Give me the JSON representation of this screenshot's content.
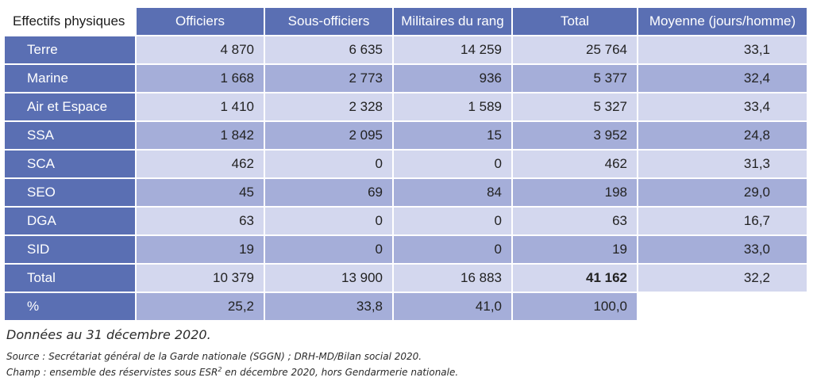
{
  "table": {
    "headers": [
      "Effectifs physiques",
      "Officiers",
      "Sous-officiers",
      "Militaires du rang",
      "Total",
      "Moyenne (jours/homme)"
    ],
    "rows": [
      {
        "label": "Terre",
        "officiers": "4 870",
        "sous_officiers": "6 635",
        "militaires": "14 259",
        "total": "25 764",
        "moyenne": "33,1"
      },
      {
        "label": "Marine",
        "officiers": "1 668",
        "sous_officiers": "2 773",
        "militaires": "936",
        "total": "5 377",
        "moyenne": "32,4"
      },
      {
        "label": "Air et Espace",
        "officiers": "1 410",
        "sous_officiers": "2 328",
        "militaires": "1 589",
        "total": "5 327",
        "moyenne": "33,4"
      },
      {
        "label": "SSA",
        "officiers": "1 842",
        "sous_officiers": "2 095",
        "militaires": "15",
        "total": "3 952",
        "moyenne": "24,8"
      },
      {
        "label": "SCA",
        "officiers": "462",
        "sous_officiers": "0",
        "militaires": "0",
        "total": "462",
        "moyenne": "31,3"
      },
      {
        "label": "SEO",
        "officiers": "45",
        "sous_officiers": "69",
        "militaires": "84",
        "total": "198",
        "moyenne": "29,0"
      },
      {
        "label": "DGA",
        "officiers": "63",
        "sous_officiers": "0",
        "militaires": "0",
        "total": "63",
        "moyenne": "16,7"
      },
      {
        "label": "SID",
        "officiers": "19",
        "sous_officiers": "0",
        "militaires": "0",
        "total": "19",
        "moyenne": "33,0"
      },
      {
        "label": "Total",
        "officiers": "10 379",
        "sous_officiers": "13 900",
        "militaires": "16 883",
        "total": "41 162",
        "moyenne": "32,2"
      },
      {
        "label": "%",
        "officiers": "25,2",
        "sous_officiers": "33,8",
        "militaires": "41,0",
        "total": "100,0",
        "moyenne": ""
      }
    ]
  },
  "notes": {
    "date": "Données au 31 décembre 2020.",
    "source": "Source : Secrétariat général de la Garde nationale (SGGN) ; DRH-MD/Bilan social 2020.",
    "champ_prefix": "Champ : ensemble des réservistes sous ESR",
    "champ_sup": "2",
    "champ_suffix": " en décembre 2020, hors Gendarmerie nationale."
  },
  "colors": {
    "header_blue": "#5a6fb3",
    "row_light": "#d3d7ee",
    "row_dark": "#a5aed9"
  }
}
